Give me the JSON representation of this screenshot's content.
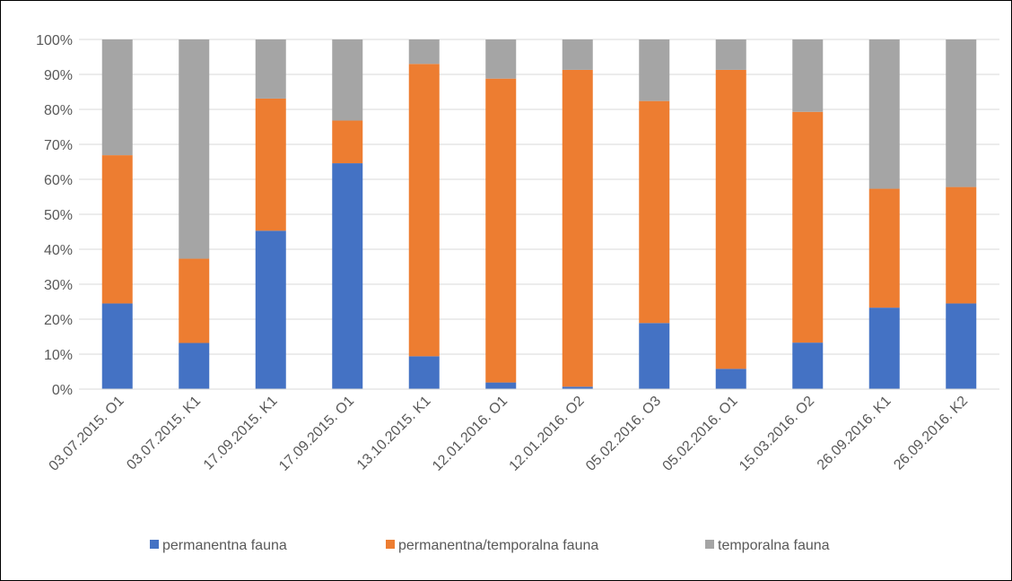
{
  "chart_data": {
    "type": "bar",
    "stacked": true,
    "percent": true,
    "title": "",
    "xlabel": "",
    "ylabel": "",
    "ylim": [
      0,
      100
    ],
    "y_ticks": [
      "0%",
      "10%",
      "20%",
      "30%",
      "40%",
      "50%",
      "60%",
      "70%",
      "80%",
      "90%",
      "100%"
    ],
    "grid": true,
    "legend_position": "bottom",
    "categories": [
      "03.07.2015. O1",
      "03.07.2015. K1",
      "17.09.2015. K1",
      "17.09.2015. O1",
      "13.10.2015. K1",
      "12.01.2016. O1",
      "12.01.2016. O2",
      "05.02.2016. O3",
      "05.02.2016. O1",
      "15.03.2016. O2",
      "26.09.2016. K1",
      "26.09.2016. K2"
    ],
    "series": [
      {
        "name": "permanentna fauna",
        "color": "#4472C4",
        "values": [
          24.5,
          13.2,
          45.3,
          64.6,
          9.4,
          1.9,
          0.7,
          18.9,
          5.8,
          13.3,
          23.3,
          24.5
        ]
      },
      {
        "name": "permanentna/temporalna fauna",
        "color": "#ED7D31",
        "values": [
          42.4,
          24.1,
          37.8,
          12.2,
          83.6,
          86.9,
          90.6,
          63.5,
          85.5,
          66.0,
          34.0,
          33.3
        ]
      },
      {
        "name": "temporalna fauna",
        "color": "#A5A5A5",
        "values": [
          33.1,
          62.7,
          16.9,
          23.2,
          7.0,
          11.2,
          8.7,
          17.6,
          8.7,
          20.7,
          42.7,
          42.2
        ]
      }
    ]
  }
}
